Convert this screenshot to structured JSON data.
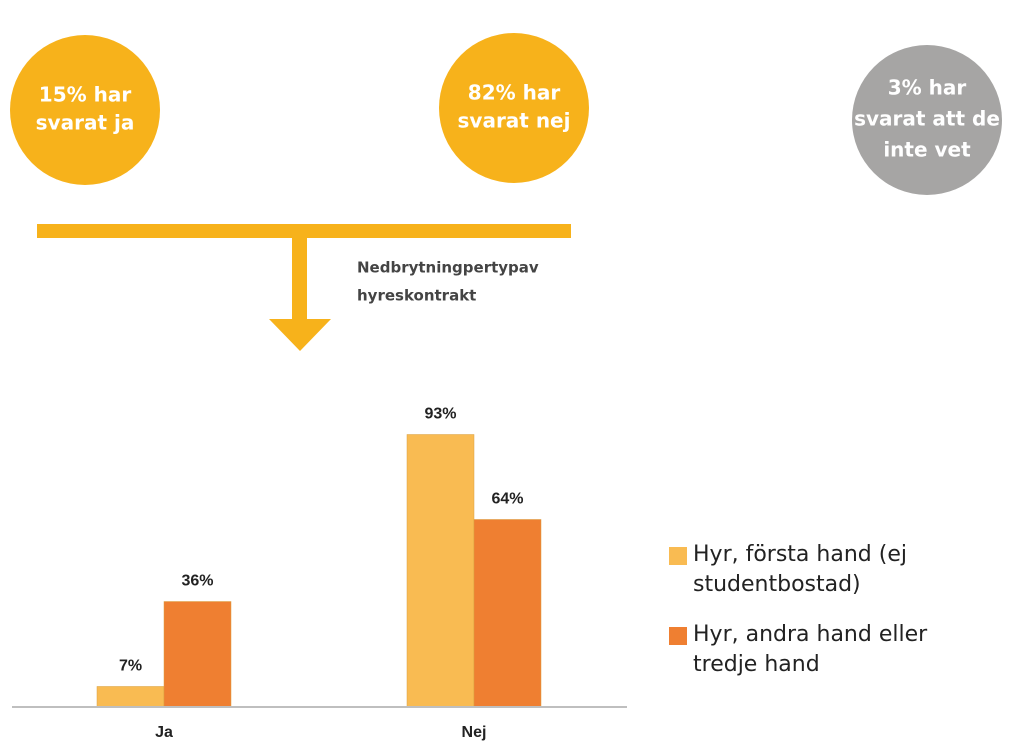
{
  "circles": [
    {
      "lines": [
        "15% har",
        "svarat ja"
      ],
      "color": "#f7b21b"
    },
    {
      "lines": [
        "82% har",
        "svarat nej"
      ],
      "color": "#f7b21b"
    },
    {
      "lines": [
        "3% har",
        "svarat att de",
        "inte vet"
      ],
      "color": "#a6a5a4"
    }
  ],
  "connector": {
    "lines": [
      "Nedbrytningpertypav",
      "hyreskontrakt"
    ],
    "color": "#f7b21b"
  },
  "chart_data": {
    "type": "bar",
    "categories": [
      "Ja",
      "Nej"
    ],
    "series": [
      {
        "name": "Hyr, första hand (ej studentbostad)",
        "color": "#f9bb52",
        "values": [
          7,
          93
        ],
        "value_labels": [
          "7%",
          "93%"
        ]
      },
      {
        "name": "Hyr, andra hand eller tredje hand",
        "color": "#ef7f31",
        "values": [
          36,
          64
        ],
        "value_labels": [
          "36%",
          "64%"
        ]
      }
    ],
    "ylim": [
      0,
      100
    ],
    "legend": "right"
  }
}
